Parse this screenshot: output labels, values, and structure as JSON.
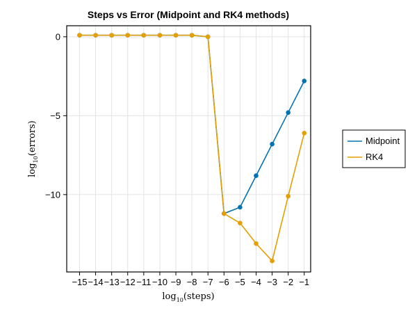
{
  "chart_data": {
    "type": "line",
    "title": "Steps vs Error (Midpoint and RK4 methods)",
    "xlabel": {
      "base": "log",
      "sub": "10",
      "arg": "(steps)"
    },
    "ylabel": {
      "base": "log",
      "sub": "10",
      "arg": "(errors)"
    },
    "xlim": [
      -15.8,
      -0.6
    ],
    "ylim": [
      -14.9,
      0.7
    ],
    "xticks": [
      -15,
      -14,
      -13,
      -12,
      -11,
      -10,
      -9,
      -8,
      -7,
      -6,
      -5,
      -4,
      -3,
      -2,
      -1
    ],
    "xtick_labels": [
      "−15",
      "−14",
      "−13",
      "−12",
      "−11",
      "−10",
      "−9",
      "−8",
      "−7",
      "−6",
      "−5",
      "−4",
      "−3",
      "−2",
      "−1"
    ],
    "yticks": [
      0,
      -5,
      -10
    ],
    "ytick_labels": [
      "0",
      "−5",
      "−10"
    ],
    "grid": true,
    "legend_position": "right",
    "series": [
      {
        "name": "Midpoint",
        "color": "#0072b2",
        "x": [
          -15,
          -14,
          -13,
          -12,
          -11,
          -10,
          -9,
          -8,
          -7,
          -6,
          -5,
          -4,
          -3,
          -2,
          -1
        ],
        "y": [
          0.1,
          0.1,
          0.1,
          0.1,
          0.1,
          0.1,
          0.1,
          0.1,
          0.0,
          -11.2,
          -10.8,
          -8.8,
          -6.8,
          -4.8,
          -2.8
        ]
      },
      {
        "name": "RK4",
        "color": "#e69f00",
        "x": [
          -15,
          -14,
          -13,
          -12,
          -11,
          -10,
          -9,
          -8,
          -7,
          -6,
          -5,
          -4,
          -3,
          -2,
          -1
        ],
        "y": [
          0.1,
          0.1,
          0.1,
          0.1,
          0.1,
          0.1,
          0.1,
          0.1,
          0.0,
          -11.2,
          -11.8,
          -13.1,
          -14.2,
          -10.1,
          -6.1
        ]
      }
    ]
  }
}
